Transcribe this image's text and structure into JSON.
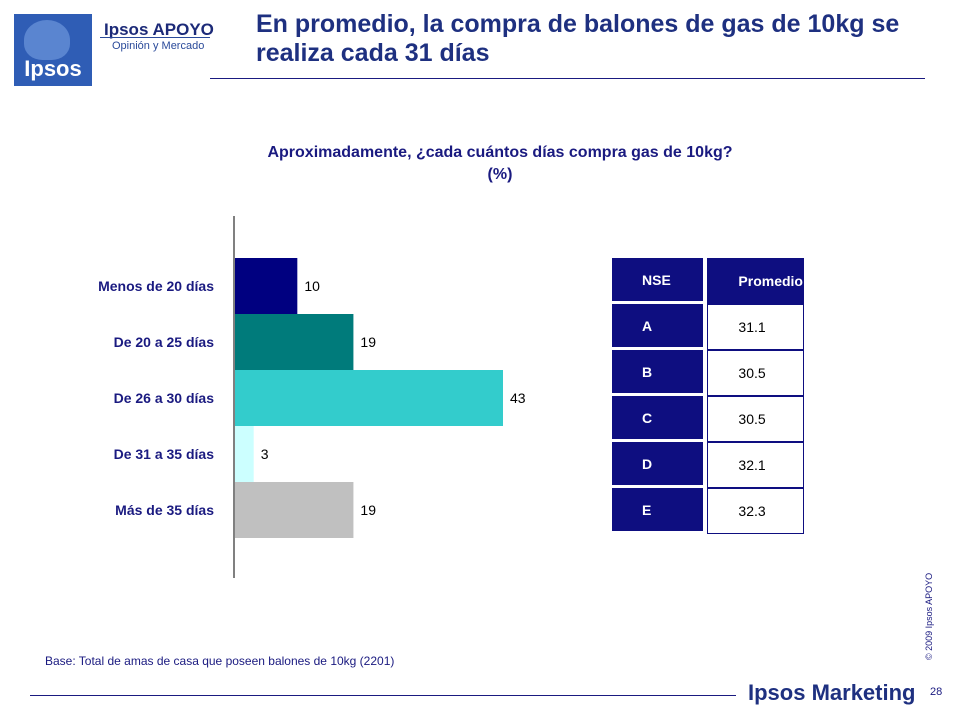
{
  "header": {
    "brand_name": "Ipsos APOYO",
    "brand_sub": "Opinión y Mercado",
    "logo_text": "Ipsos",
    "title": "En promedio, la compra de balones de gas de 10kg se realiza cada 31 días"
  },
  "question": {
    "line1": "Aproximadamente, ¿cada cuántos días compra gas de 10kg?",
    "line2": "(%)"
  },
  "chart_data": {
    "type": "bar",
    "orientation": "horizontal",
    "categories": [
      "Menos de 20 días",
      "De 20 a 25 días",
      "De 26 a 30 días",
      "De 31 a 35 días",
      "Más de 35 días"
    ],
    "values": [
      10,
      19,
      43,
      3,
      19
    ],
    "colors": [
      "#000080",
      "#007b7b",
      "#33cccc",
      "#ccffff",
      "#c0c0c0"
    ],
    "xlim": [
      0,
      50
    ]
  },
  "table": {
    "headers": [
      "NSE",
      "Promedio"
    ],
    "rows": [
      {
        "nse": "A",
        "value": "31.1"
      },
      {
        "nse": "B",
        "value": "30.5"
      },
      {
        "nse": "C",
        "value": "30.5"
      },
      {
        "nse": "D",
        "value": "32.1"
      },
      {
        "nse": "E",
        "value": "32.3"
      }
    ]
  },
  "footer": {
    "base": "Base: Total de amas de casa que poseen balones de 10kg  (2201)",
    "brand": "Ipsos Marketing",
    "copyright": "© 2009 Ipsos APOYO",
    "page": "28"
  }
}
